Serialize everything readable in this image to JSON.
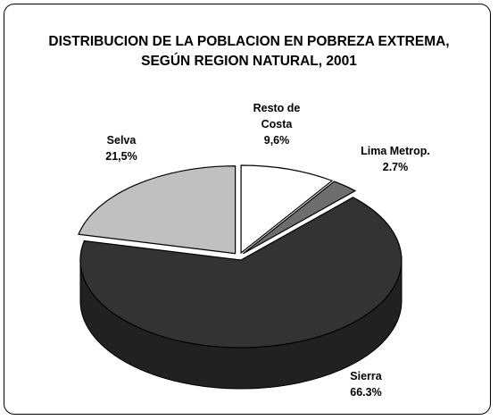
{
  "chart_data": {
    "type": "pie",
    "title": "DISTRIBUCION DE LA POBLACION EN POBREZA EXTREMA,  SEGÚN REGION NATURAL, 2001",
    "categories": [
      "Resto de Costa",
      "Lima Metrop.",
      "Sierra",
      "Selva"
    ],
    "values": [
      9.6,
      2.7,
      66.3,
      21.5
    ],
    "value_labels": [
      "9,6%",
      "2.7%",
      "66.3%",
      "21,5%"
    ],
    "colors": [
      "#ffffff",
      "#6e6e6e",
      "#333333",
      "#c0c0c0"
    ]
  }
}
